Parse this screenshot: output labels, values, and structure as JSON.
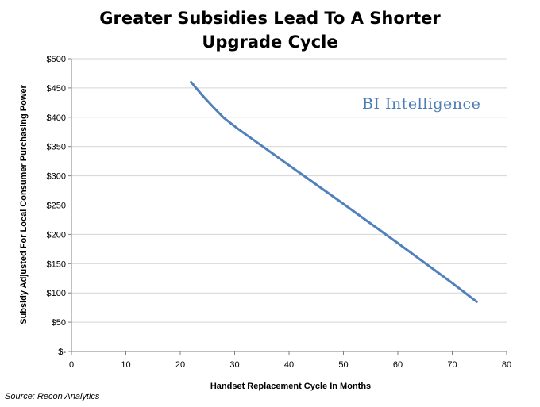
{
  "chart_data": {
    "type": "line",
    "title_lines": [
      "Greater Subsidies Lead To A Shorter",
      "Upgrade Cycle"
    ],
    "xlabel": "Handset Replacement Cycle In Months",
    "ylabel": "Subsidy Adjusted For Local Consumer Purchasing Power",
    "xlim": [
      0,
      80
    ],
    "ylim": [
      0,
      500
    ],
    "x_ticks": [
      0,
      10,
      20,
      30,
      40,
      50,
      60,
      70,
      80
    ],
    "y_ticks": [
      {
        "value": 0,
        "label": "$-"
      },
      {
        "value": 50,
        "label": "$50"
      },
      {
        "value": 100,
        "label": "$100"
      },
      {
        "value": 150,
        "label": "$150"
      },
      {
        "value": 200,
        "label": "$200"
      },
      {
        "value": 250,
        "label": "$250"
      },
      {
        "value": 300,
        "label": "$300"
      },
      {
        "value": 350,
        "label": "$350"
      },
      {
        "value": 400,
        "label": "$400"
      },
      {
        "value": 450,
        "label": "$450"
      },
      {
        "value": 500,
        "label": "$500"
      }
    ],
    "grid": "horizontal",
    "series": [
      {
        "color": "#4f81bd",
        "x": [
          22,
          24,
          26,
          28,
          30.5,
          40,
          50,
          60,
          70,
          74.5
        ],
        "y": [
          460,
          438,
          418,
          399,
          381,
          318,
          252,
          185,
          117,
          85
        ]
      }
    ]
  },
  "branding": "BI Intelligence",
  "source": "Source: Recon Analytics"
}
